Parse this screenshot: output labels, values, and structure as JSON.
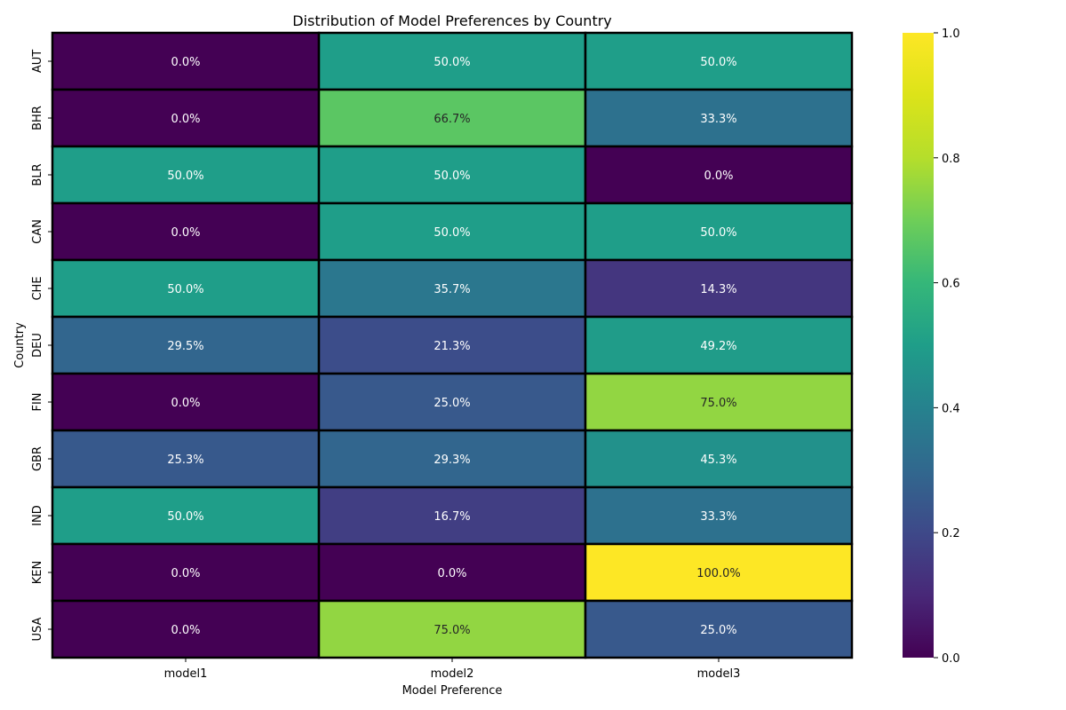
{
  "chart_data": {
    "type": "heatmap",
    "title": "Distribution of Model Preferences by Country",
    "xlabel": "Model Preference",
    "ylabel": "Country",
    "columns": [
      "model1",
      "model2",
      "model3"
    ],
    "rows": [
      "AUT",
      "BHR",
      "BLR",
      "CAN",
      "CHE",
      "DEU",
      "FIN",
      "GBR",
      "IND",
      "KEN",
      "USA"
    ],
    "values": [
      [
        0.0,
        0.5,
        0.5
      ],
      [
        0.0,
        0.667,
        0.333
      ],
      [
        0.5,
        0.5,
        0.0
      ],
      [
        0.0,
        0.5,
        0.5
      ],
      [
        0.5,
        0.357,
        0.143
      ],
      [
        0.295,
        0.213,
        0.492
      ],
      [
        0.0,
        0.25,
        0.75
      ],
      [
        0.253,
        0.293,
        0.453
      ],
      [
        0.5,
        0.167,
        0.333
      ],
      [
        0.0,
        0.0,
        1.0
      ],
      [
        0.0,
        0.75,
        0.25
      ]
    ],
    "cell_labels": [
      [
        "0.0%",
        "50.0%",
        "50.0%"
      ],
      [
        "0.0%",
        "66.7%",
        "33.3%"
      ],
      [
        "50.0%",
        "50.0%",
        "0.0%"
      ],
      [
        "0.0%",
        "50.0%",
        "50.0%"
      ],
      [
        "50.0%",
        "35.7%",
        "14.3%"
      ],
      [
        "29.5%",
        "21.3%",
        "49.2%"
      ],
      [
        "0.0%",
        "25.0%",
        "75.0%"
      ],
      [
        "25.3%",
        "29.3%",
        "45.3%"
      ],
      [
        "50.0%",
        "16.7%",
        "33.3%"
      ],
      [
        "0.0%",
        "0.0%",
        "100.0%"
      ],
      [
        "0.0%",
        "75.0%",
        "25.0%"
      ]
    ],
    "colormap": "viridis",
    "colorbar": {
      "range": [
        0.0,
        1.0
      ],
      "ticks": [
        0.0,
        0.2,
        0.4,
        0.6,
        0.8,
        1.0
      ],
      "tick_labels": [
        "0.0",
        "0.2",
        "0.4",
        "0.6",
        "0.8",
        "1.0"
      ]
    },
    "grid": false,
    "cell_border_color": "#000000"
  }
}
